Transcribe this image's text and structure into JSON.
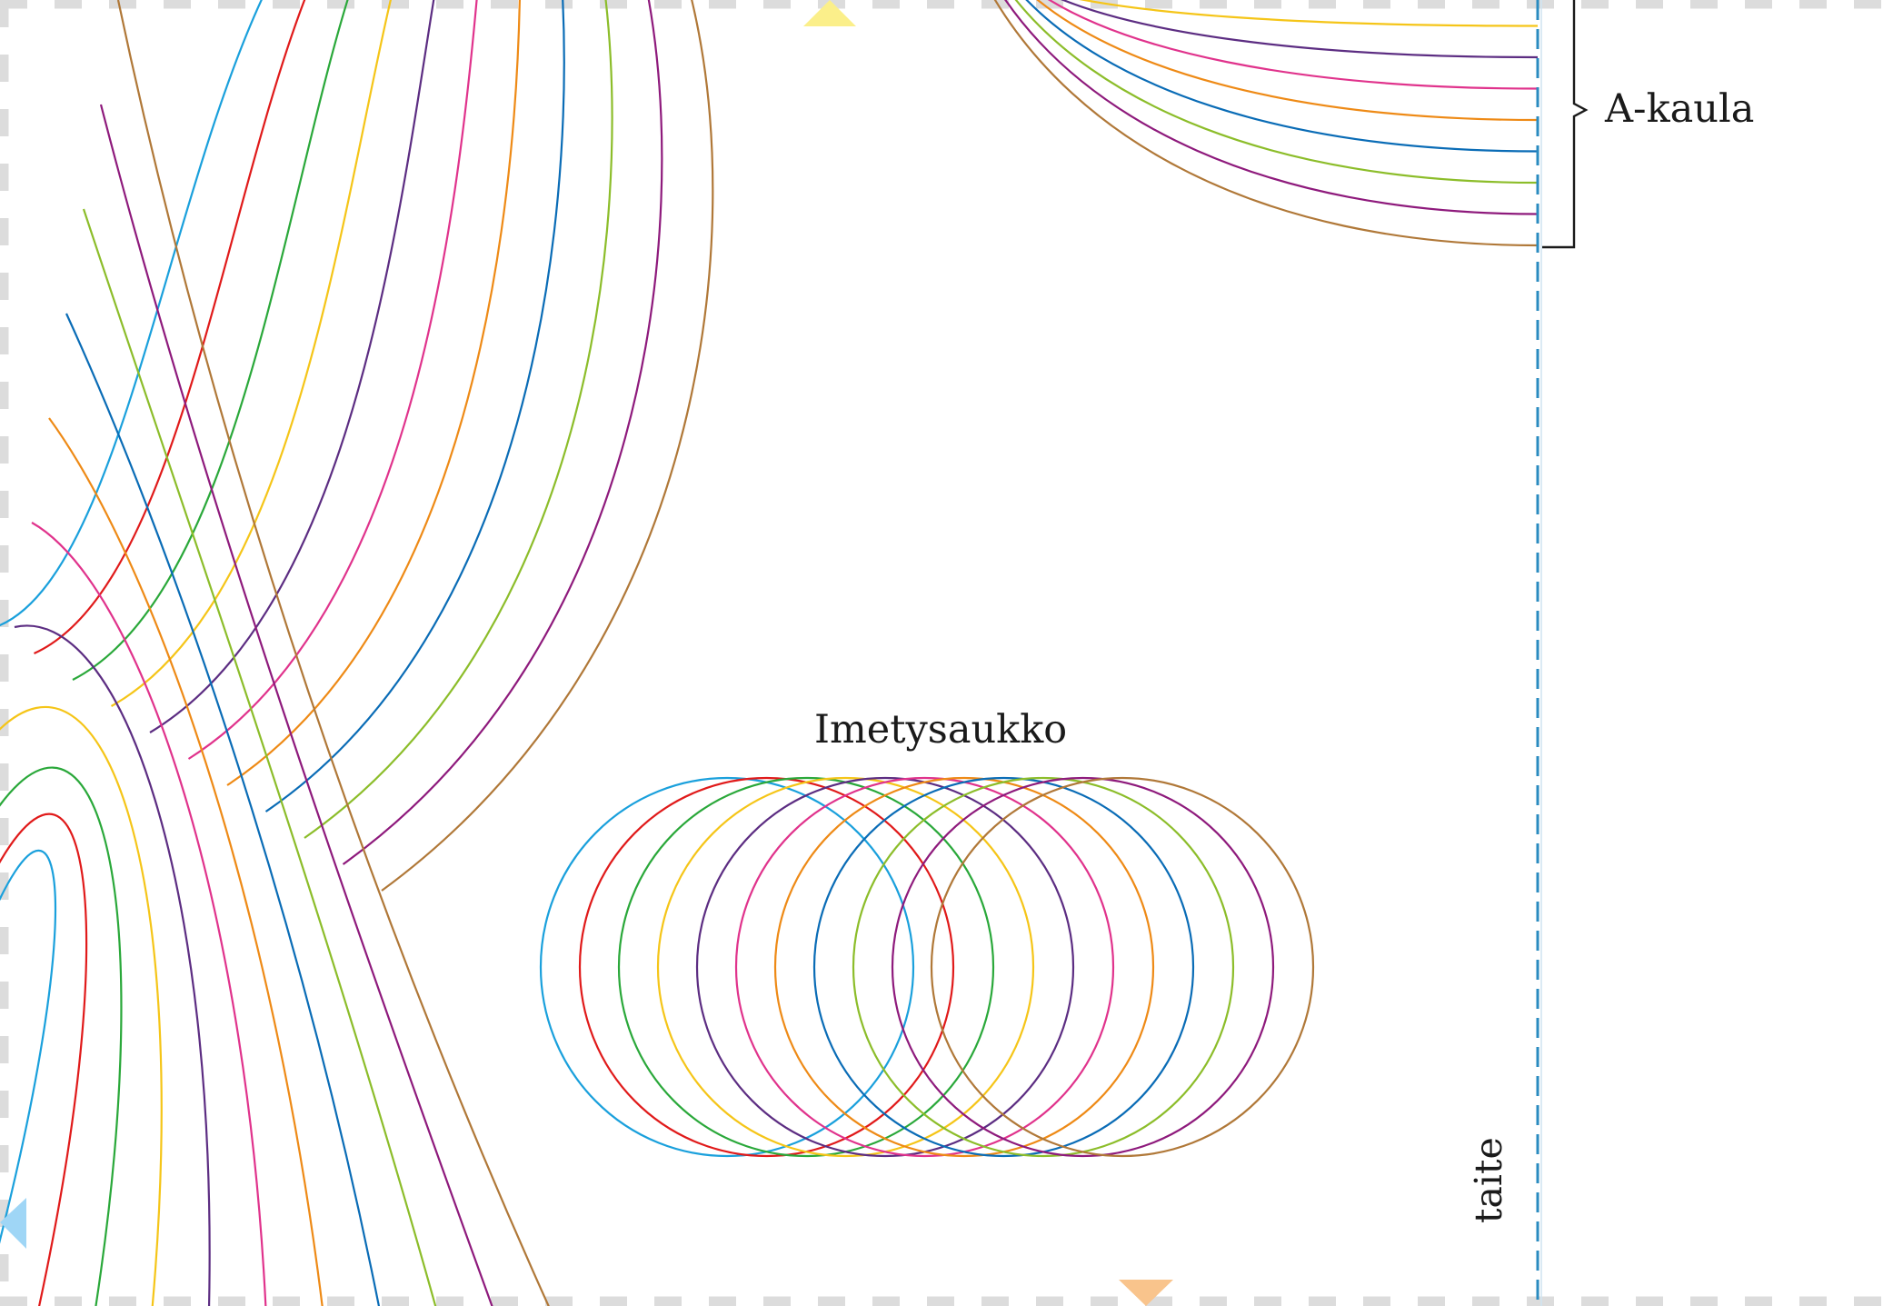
{
  "labels": {
    "neck": "A-kaula",
    "nursing_opening": "Imetysaukko",
    "fold": "taite"
  },
  "size_colors": [
    "#1aa0dc",
    "#e01a1a",
    "#2aa83a",
    "#f5c518",
    "#5c2d82",
    "#e0338c",
    "#ee8a16",
    "#0a6cb6",
    "#8cbd2a",
    "#8e1a7c",
    "#b07838"
  ],
  "marker_colors": {
    "top": "#fbef8a",
    "left": "#9fd6f6",
    "bottom": "#f9c48c"
  },
  "guide_colors": {
    "border_dash": "#dcdcdc",
    "fold_line": "#2a8bc0",
    "bracket": "#1a1a1a"
  }
}
